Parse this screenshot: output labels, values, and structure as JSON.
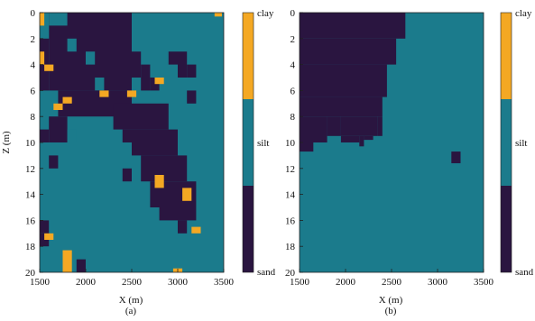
{
  "colors": {
    "clay": "#F4A823",
    "silt": "#1B7B8C",
    "sand": "#2A1540"
  },
  "chart_data": [
    {
      "type": "heatmap",
      "xlabel": "X (m)",
      "ylabel": "Z (m)",
      "caption": "(a)",
      "xlim": [
        1500,
        3500
      ],
      "ylim": [
        0,
        20
      ],
      "xticks": [
        "1500",
        "2000",
        "2500",
        "3000",
        "3500"
      ],
      "yticks": [
        "0",
        "2",
        "4",
        "6",
        "8",
        "10",
        "12",
        "14",
        "16",
        "18",
        "20"
      ],
      "colorbar": {
        "labels": [
          "clay",
          "silt",
          "sand"
        ]
      },
      "background": "silt",
      "blocks": [
        {
          "c": "sand",
          "x": [
            1600,
            2500
          ],
          "z": [
            0,
            6
          ]
        },
        {
          "c": "silt",
          "x": [
            1600,
            1800
          ],
          "z": [
            0,
            1
          ]
        },
        {
          "c": "silt",
          "x": [
            1500,
            1600
          ],
          "z": [
            1,
            2
          ]
        },
        {
          "c": "silt",
          "x": [
            1800,
            1900
          ],
          "z": [
            2,
            3
          ]
        },
        {
          "c": "silt",
          "x": [
            2000,
            2100
          ],
          "z": [
            3,
            4
          ]
        },
        {
          "c": "silt",
          "x": [
            2100,
            2200
          ],
          "z": [
            5,
            6
          ]
        },
        {
          "c": "sand",
          "x": [
            1500,
            1600
          ],
          "z": [
            2,
            6
          ]
        },
        {
          "c": "sand",
          "x": [
            2500,
            2600
          ],
          "z": [
            3,
            5
          ]
        },
        {
          "c": "sand",
          "x": [
            2600,
            2700
          ],
          "z": [
            4,
            6
          ]
        },
        {
          "c": "sand",
          "x": [
            2700,
            2800
          ],
          "z": [
            5,
            6
          ]
        },
        {
          "c": "sand",
          "x": [
            2900,
            3000
          ],
          "z": [
            3,
            4
          ]
        },
        {
          "c": "sand",
          "x": [
            3000,
            3100
          ],
          "z": [
            3,
            5
          ]
        },
        {
          "c": "sand",
          "x": [
            3100,
            3200
          ],
          "z": [
            4,
            5
          ]
        },
        {
          "c": "sand",
          "x": [
            1700,
            2500
          ],
          "z": [
            6,
            8
          ]
        },
        {
          "c": "sand",
          "x": [
            2300,
            2900
          ],
          "z": [
            7,
            9
          ]
        },
        {
          "c": "sand",
          "x": [
            2500,
            3000
          ],
          "z": [
            9,
            11
          ]
        },
        {
          "c": "sand",
          "x": [
            2600,
            3100
          ],
          "z": [
            11,
            13
          ]
        },
        {
          "c": "sand",
          "x": [
            2700,
            3200
          ],
          "z": [
            13,
            15
          ]
        },
        {
          "c": "sand",
          "x": [
            2800,
            3200
          ],
          "z": [
            15,
            16
          ]
        },
        {
          "c": "sand",
          "x": [
            1600,
            1800
          ],
          "z": [
            8,
            10
          ]
        },
        {
          "c": "sand",
          "x": [
            1500,
            1600
          ],
          "z": [
            9,
            10
          ]
        },
        {
          "c": "silt",
          "x": [
            1800,
            1900
          ],
          "z": [
            9,
            10
          ]
        },
        {
          "c": "sand",
          "x": [
            1600,
            1700
          ],
          "z": [
            11,
            12
          ]
        },
        {
          "c": "sand",
          "x": [
            2400,
            2500
          ],
          "z": [
            9,
            10
          ]
        },
        {
          "c": "sand",
          "x": [
            3100,
            3200
          ],
          "z": [
            6,
            7
          ]
        },
        {
          "c": "sand",
          "x": [
            2400,
            2500
          ],
          "z": [
            12,
            13
          ]
        },
        {
          "c": "sand",
          "x": [
            1500,
            1600
          ],
          "z": [
            16,
            17
          ]
        },
        {
          "c": "sand",
          "x": [
            1500,
            1600
          ],
          "z": [
            17,
            18
          ]
        },
        {
          "c": "sand",
          "x": [
            1900,
            2000
          ],
          "z": [
            19,
            20
          ]
        },
        {
          "c": "sand",
          "x": [
            3000,
            3100
          ],
          "z": [
            16,
            17
          ]
        },
        {
          "c": "clay",
          "x": [
            1500,
            1550
          ],
          "z": [
            0,
            1
          ]
        },
        {
          "c": "clay",
          "x": [
            1500,
            1550
          ],
          "z": [
            3,
            4
          ]
        },
        {
          "c": "clay",
          "x": [
            1550,
            1650
          ],
          "z": [
            4,
            4.5
          ]
        },
        {
          "c": "clay",
          "x": [
            1750,
            1850
          ],
          "z": [
            6.5,
            7
          ]
        },
        {
          "c": "clay",
          "x": [
            1650,
            1750
          ],
          "z": [
            7,
            7.5
          ]
        },
        {
          "c": "clay",
          "x": [
            2150,
            2250
          ],
          "z": [
            6,
            6.5
          ]
        },
        {
          "c": "clay",
          "x": [
            2450,
            2550
          ],
          "z": [
            6,
            6.5
          ]
        },
        {
          "c": "clay",
          "x": [
            2750,
            2850
          ],
          "z": [
            5,
            5.5
          ]
        },
        {
          "c": "clay",
          "x": [
            2750,
            2850
          ],
          "z": [
            12.5,
            13.5
          ]
        },
        {
          "c": "clay",
          "x": [
            3050,
            3150
          ],
          "z": [
            13.5,
            14.5
          ]
        },
        {
          "c": "clay",
          "x": [
            3150,
            3250
          ],
          "z": [
            16.5,
            17
          ]
        },
        {
          "c": "clay",
          "x": [
            1550,
            1650
          ],
          "z": [
            17,
            17.5
          ]
        },
        {
          "c": "clay",
          "x": [
            1750,
            1850
          ],
          "z": [
            18.3,
            20
          ]
        },
        {
          "c": "clay",
          "x": [
            2950,
            3050
          ],
          "z": [
            19.7,
            20
          ]
        },
        {
          "c": "clay",
          "x": [
            3400,
            3480
          ],
          "z": [
            0,
            0.3
          ]
        }
      ]
    },
    {
      "type": "heatmap",
      "xlabel": "X (m)",
      "ylabel": "",
      "caption": "(b)",
      "xlim": [
        1500,
        3500
      ],
      "ylim": [
        0,
        20
      ],
      "xticks": [
        "1500",
        "2000",
        "2500",
        "3000",
        "3500"
      ],
      "yticks": [
        "0",
        "2",
        "4",
        "6",
        "8",
        "10",
        "12",
        "14",
        "16",
        "18",
        "20"
      ],
      "colorbar": {
        "labels": [
          "clay",
          "silt",
          "sand"
        ]
      },
      "background": "silt",
      "blocks": [
        {
          "c": "sand",
          "x": [
            1500,
            2650
          ],
          "z": [
            0,
            2
          ]
        },
        {
          "c": "sand",
          "x": [
            1500,
            2550
          ],
          "z": [
            2,
            4
          ]
        },
        {
          "c": "sand",
          "x": [
            1500,
            2450
          ],
          "z": [
            4,
            6.5
          ]
        },
        {
          "c": "sand",
          "x": [
            1500,
            2400
          ],
          "z": [
            6.5,
            8
          ]
        },
        {
          "c": "sand",
          "x": [
            1500,
            1800
          ],
          "z": [
            8,
            10
          ]
        },
        {
          "c": "sand",
          "x": [
            1800,
            1950
          ],
          "z": [
            8,
            9.5
          ]
        },
        {
          "c": "sand",
          "x": [
            1950,
            2350
          ],
          "z": [
            8,
            9.5
          ]
        },
        {
          "c": "sand",
          "x": [
            2350,
            2400
          ],
          "z": [
            8,
            9.5
          ]
        },
        {
          "c": "sand",
          "x": [
            1500,
            1650
          ],
          "z": [
            10,
            10.7
          ]
        },
        {
          "c": "sand",
          "x": [
            1950,
            2150
          ],
          "z": [
            9.5,
            10
          ]
        },
        {
          "c": "sand",
          "x": [
            2150,
            2200
          ],
          "z": [
            9.5,
            10.3
          ]
        },
        {
          "c": "sand",
          "x": [
            2200,
            2300
          ],
          "z": [
            9.5,
            9.8
          ]
        },
        {
          "c": "sand",
          "x": [
            3150,
            3250
          ],
          "z": [
            10.7,
            11.6
          ]
        }
      ]
    }
  ]
}
